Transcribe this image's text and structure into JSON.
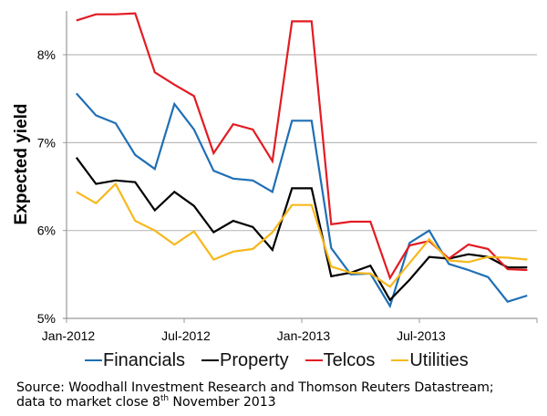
{
  "chart_data": {
    "type": "line",
    "title": "",
    "xlabel": "",
    "ylabel": "Expected yield",
    "ylim": [
      5,
      8.5
    ],
    "yticks": [
      5,
      6,
      7,
      8
    ],
    "ytick_labels": [
      "5%",
      "6%",
      "7%",
      "8%"
    ],
    "xticks": [
      "Jan-2012",
      "Jul-2012",
      "Jan-2013",
      "Jul-2013"
    ],
    "x": [
      "Jan-2012",
      "Feb-2012",
      "Mar-2012",
      "Apr-2012",
      "May-2012",
      "Jun-2012",
      "Jul-2012",
      "Aug-2012",
      "Sep-2012",
      "Oct-2012",
      "Nov-2012",
      "Dec-2012",
      "Jan-2013",
      "Feb-2013",
      "Mar-2013",
      "Apr-2013",
      "May-2013",
      "Jun-2013",
      "Jul-2013",
      "Aug-2013",
      "Sep-2013",
      "Oct-2013",
      "Nov-2013",
      "Dec-2013"
    ],
    "grid": true,
    "legend_position": "bottom",
    "series": [
      {
        "name": "Financials",
        "color": "#1f6fb5",
        "values": [
          7.56,
          7.31,
          7.22,
          6.86,
          6.7,
          7.44,
          7.15,
          6.68,
          6.59,
          6.57,
          6.44,
          7.25,
          7.25,
          5.8,
          5.5,
          5.51,
          5.14,
          5.86,
          6.0,
          5.62,
          5.55,
          5.47,
          5.19,
          5.26
        ]
      },
      {
        "name": "Property",
        "color": "#000000",
        "values": [
          6.83,
          6.53,
          6.57,
          6.55,
          6.23,
          6.44,
          6.28,
          5.98,
          6.11,
          6.04,
          5.78,
          6.48,
          6.48,
          5.48,
          5.52,
          5.6,
          5.21,
          5.44,
          5.7,
          5.68,
          5.73,
          5.7,
          5.58,
          5.58
        ]
      },
      {
        "name": "Telcos",
        "color": "#e31b23",
        "values": [
          8.39,
          8.46,
          8.46,
          8.47,
          7.8,
          7.66,
          7.53,
          6.88,
          7.21,
          7.15,
          6.79,
          8.38,
          8.38,
          6.07,
          6.1,
          6.1,
          5.46,
          5.83,
          5.88,
          5.68,
          5.84,
          5.79,
          5.56,
          5.55
        ]
      },
      {
        "name": "Utilities",
        "color": "#f7b81c",
        "values": [
          6.44,
          6.31,
          6.53,
          6.11,
          6.0,
          5.84,
          5.99,
          5.67,
          5.76,
          5.79,
          5.98,
          6.29,
          6.29,
          5.59,
          5.52,
          5.51,
          5.36,
          5.63,
          5.9,
          5.66,
          5.64,
          5.7,
          5.69,
          5.67
        ]
      }
    ]
  },
  "source": {
    "line1": "Source: Woodhall Investment Research and Thomson Reuters Datastream;",
    "line2_prefix": "data to market close 8",
    "line2_sup": "th",
    "line2_suffix": " November 2013"
  }
}
